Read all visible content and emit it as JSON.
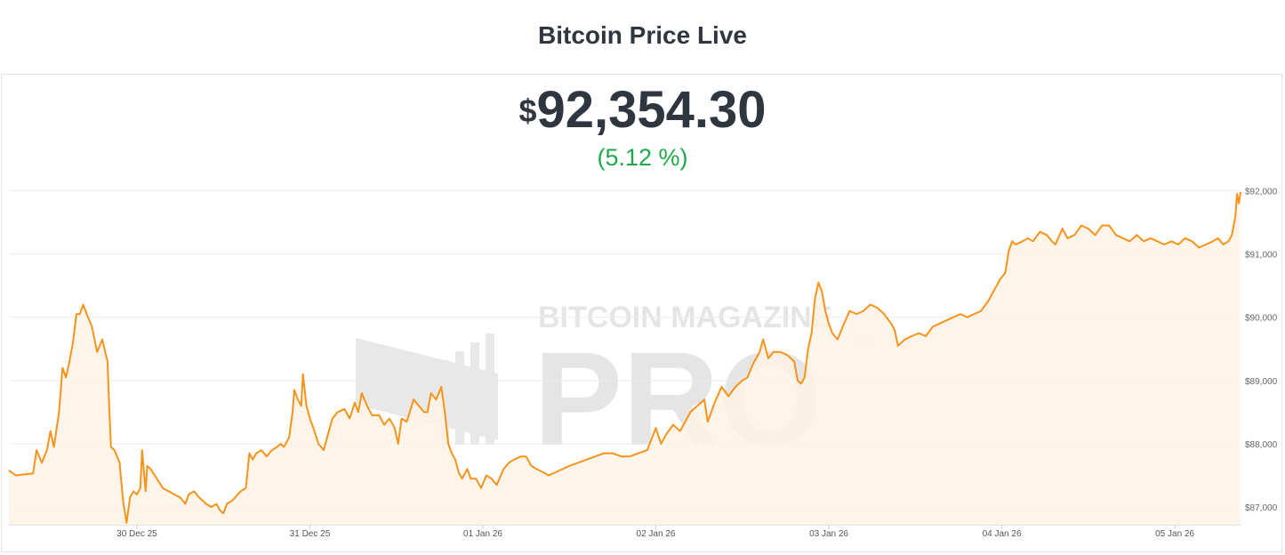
{
  "header": {
    "title": "Bitcoin Price Live"
  },
  "ticker": {
    "currency_symbol": "$",
    "price": "92,354.30",
    "change": "(5.12 %)"
  },
  "watermark": {
    "line1": "BITCOIN MAGAZINE",
    "line2": "PRO",
    "mark": "®"
  },
  "colors": {
    "line": "#f7931a",
    "fill": "#fdf3e6",
    "change_positive": "#1ea84a",
    "grid": "#ececec",
    "text": "#2f3640"
  },
  "chart_data": {
    "type": "area",
    "x_unit": "days",
    "x_tick_labels": [
      {
        "x": 1,
        "label": "30 Dec 25"
      },
      {
        "x": 2,
        "label": "31 Dec 25"
      },
      {
        "x": 3,
        "label": "01 Jan 26"
      },
      {
        "x": 4,
        "label": "02 Jan 26"
      },
      {
        "x": 5,
        "label": "03 Jan 26"
      },
      {
        "x": 6,
        "label": "04 Jan 26"
      },
      {
        "x": 7,
        "label": "05 Jan 26"
      }
    ],
    "y_ticks": [
      87000,
      88000,
      89000,
      90000,
      91000,
      92000
    ],
    "y_tick_labels": [
      "$87,000",
      "$88,000",
      "$89,000",
      "$90,000",
      "$91,000",
      "$92,000"
    ],
    "xlim": [
      0.26,
      7.38
    ],
    "ylim": [
      86720,
      92020
    ],
    "grid": true,
    "series": [
      {
        "values": [
          [
            0.26,
            87580
          ],
          [
            0.3,
            87500
          ],
          [
            0.36,
            87520
          ],
          [
            0.4,
            87530
          ],
          [
            0.42,
            87900
          ],
          [
            0.45,
            87700
          ],
          [
            0.48,
            87900
          ],
          [
            0.5,
            88200
          ],
          [
            0.52,
            87950
          ],
          [
            0.55,
            88500
          ],
          [
            0.57,
            89200
          ],
          [
            0.59,
            89050
          ],
          [
            0.61,
            89300
          ],
          [
            0.63,
            89600
          ],
          [
            0.65,
            90050
          ],
          [
            0.67,
            90050
          ],
          [
            0.69,
            90200
          ],
          [
            0.71,
            90050
          ],
          [
            0.74,
            89850
          ],
          [
            0.77,
            89450
          ],
          [
            0.8,
            89650
          ],
          [
            0.83,
            89300
          ],
          [
            0.84,
            88600
          ],
          [
            0.85,
            87950
          ],
          [
            0.87,
            87900
          ],
          [
            0.9,
            87700
          ],
          [
            0.92,
            87100
          ],
          [
            0.94,
            86750
          ],
          [
            0.96,
            87150
          ],
          [
            0.98,
            87250
          ],
          [
            1.0,
            87200
          ],
          [
            1.02,
            87300
          ],
          [
            1.03,
            87900
          ],
          [
            1.05,
            87250
          ],
          [
            1.06,
            87650
          ],
          [
            1.08,
            87600
          ],
          [
            1.15,
            87300
          ],
          [
            1.25,
            87150
          ],
          [
            1.28,
            87050
          ],
          [
            1.3,
            87200
          ],
          [
            1.33,
            87250
          ],
          [
            1.36,
            87150
          ],
          [
            1.4,
            87050
          ],
          [
            1.43,
            87000
          ],
          [
            1.46,
            87050
          ],
          [
            1.48,
            86950
          ],
          [
            1.5,
            86900
          ],
          [
            1.52,
            87050
          ],
          [
            1.55,
            87100
          ],
          [
            1.6,
            87250
          ],
          [
            1.63,
            87300
          ],
          [
            1.65,
            87850
          ],
          [
            1.67,
            87750
          ],
          [
            1.69,
            87850
          ],
          [
            1.72,
            87900
          ],
          [
            1.75,
            87800
          ],
          [
            1.78,
            87900
          ],
          [
            1.81,
            87950
          ],
          [
            1.83,
            88000
          ],
          [
            1.85,
            87950
          ],
          [
            1.88,
            88100
          ],
          [
            1.9,
            88500
          ],
          [
            1.91,
            88850
          ],
          [
            1.93,
            88700
          ],
          [
            1.95,
            88600
          ],
          [
            1.96,
            89100
          ],
          [
            1.98,
            88600
          ],
          [
            2.0,
            88400
          ],
          [
            2.02,
            88250
          ],
          [
            2.05,
            88000
          ],
          [
            2.08,
            87900
          ],
          [
            2.1,
            88100
          ],
          [
            2.13,
            88400
          ],
          [
            2.16,
            88500
          ],
          [
            2.2,
            88550
          ],
          [
            2.23,
            88400
          ],
          [
            2.26,
            88650
          ],
          [
            2.28,
            88500
          ],
          [
            2.3,
            88800
          ],
          [
            2.33,
            88600
          ],
          [
            2.36,
            88450
          ],
          [
            2.4,
            88450
          ],
          [
            2.43,
            88300
          ],
          [
            2.46,
            88400
          ],
          [
            2.49,
            88250
          ],
          [
            2.51,
            88000
          ],
          [
            2.53,
            88400
          ],
          [
            2.56,
            88350
          ],
          [
            2.6,
            88700
          ],
          [
            2.63,
            88600
          ],
          [
            2.66,
            88500
          ],
          [
            2.68,
            88500
          ],
          [
            2.7,
            88800
          ],
          [
            2.73,
            88700
          ],
          [
            2.76,
            88900
          ],
          [
            2.78,
            88500
          ],
          [
            2.8,
            88000
          ],
          [
            2.82,
            87850
          ],
          [
            2.84,
            87750
          ],
          [
            2.86,
            87550
          ],
          [
            2.88,
            87450
          ],
          [
            2.91,
            87600
          ],
          [
            2.93,
            87450
          ],
          [
            2.96,
            87450
          ],
          [
            2.99,
            87300
          ],
          [
            3.02,
            87500
          ],
          [
            3.05,
            87450
          ],
          [
            3.08,
            87350
          ],
          [
            3.12,
            87600
          ],
          [
            3.15,
            87700
          ],
          [
            3.18,
            87750
          ],
          [
            3.22,
            87800
          ],
          [
            3.25,
            87800
          ],
          [
            3.28,
            87650
          ],
          [
            3.31,
            87600
          ],
          [
            3.35,
            87550
          ],
          [
            3.38,
            87500
          ],
          [
            3.42,
            87550
          ],
          [
            3.46,
            87600
          ],
          [
            3.5,
            87650
          ],
          [
            3.55,
            87700
          ],
          [
            3.6,
            87750
          ],
          [
            3.65,
            87800
          ],
          [
            3.7,
            87850
          ],
          [
            3.75,
            87850
          ],
          [
            3.8,
            87800
          ],
          [
            3.85,
            87800
          ],
          [
            3.9,
            87850
          ],
          [
            3.95,
            87900
          ],
          [
            4.0,
            88250
          ],
          [
            4.03,
            88000
          ],
          [
            4.06,
            88150
          ],
          [
            4.1,
            88300
          ],
          [
            4.14,
            88200
          ],
          [
            4.17,
            88350
          ],
          [
            4.2,
            88500
          ],
          [
            4.24,
            88600
          ],
          [
            4.28,
            88700
          ],
          [
            4.3,
            88350
          ],
          [
            4.34,
            88650
          ],
          [
            4.38,
            88900
          ],
          [
            4.42,
            88750
          ],
          [
            4.46,
            88900
          ],
          [
            4.5,
            89000
          ],
          [
            4.53,
            89050
          ],
          [
            4.56,
            89250
          ],
          [
            4.6,
            89450
          ],
          [
            4.62,
            89650
          ],
          [
            4.65,
            89350
          ],
          [
            4.68,
            89450
          ],
          [
            4.72,
            89450
          ],
          [
            4.76,
            89400
          ],
          [
            4.8,
            89300
          ],
          [
            4.82,
            89000
          ],
          [
            4.84,
            88950
          ],
          [
            4.86,
            89050
          ],
          [
            4.88,
            89500
          ],
          [
            4.9,
            89750
          ],
          [
            4.92,
            90300
          ],
          [
            4.94,
            90550
          ],
          [
            4.96,
            90400
          ],
          [
            4.98,
            90100
          ],
          [
            5.0,
            89900
          ],
          [
            5.02,
            89750
          ],
          [
            5.05,
            89650
          ],
          [
            5.08,
            89850
          ],
          [
            5.12,
            90100
          ],
          [
            5.16,
            90050
          ],
          [
            5.2,
            90100
          ],
          [
            5.24,
            90200
          ],
          [
            5.28,
            90150
          ],
          [
            5.32,
            90050
          ],
          [
            5.36,
            89900
          ],
          [
            5.38,
            89800
          ],
          [
            5.4,
            89550
          ],
          [
            5.44,
            89650
          ],
          [
            5.48,
            89700
          ],
          [
            5.52,
            89750
          ],
          [
            5.56,
            89700
          ],
          [
            5.6,
            89850
          ],
          [
            5.64,
            89900
          ],
          [
            5.68,
            89950
          ],
          [
            5.72,
            90000
          ],
          [
            5.76,
            90050
          ],
          [
            5.8,
            90000
          ],
          [
            5.84,
            90050
          ],
          [
            5.88,
            90100
          ],
          [
            5.92,
            90250
          ],
          [
            5.96,
            90450
          ],
          [
            5.99,
            90600
          ],
          [
            6.02,
            90700
          ],
          [
            6.04,
            91050
          ],
          [
            6.06,
            91200
          ],
          [
            6.08,
            91150
          ],
          [
            6.12,
            91200
          ],
          [
            6.15,
            91250
          ],
          [
            6.18,
            91200
          ],
          [
            6.22,
            91350
          ],
          [
            6.26,
            91300
          ],
          [
            6.29,
            91200
          ],
          [
            6.31,
            91150
          ],
          [
            6.35,
            91400
          ],
          [
            6.38,
            91250
          ],
          [
            6.42,
            91300
          ],
          [
            6.46,
            91450
          ],
          [
            6.5,
            91400
          ],
          [
            6.54,
            91300
          ],
          [
            6.58,
            91450
          ],
          [
            6.62,
            91450
          ],
          [
            6.66,
            91300
          ],
          [
            6.7,
            91250
          ],
          [
            6.74,
            91200
          ],
          [
            6.78,
            91300
          ],
          [
            6.82,
            91200
          ],
          [
            6.86,
            91250
          ],
          [
            6.9,
            91200
          ],
          [
            6.94,
            91150
          ],
          [
            6.98,
            91200
          ],
          [
            7.02,
            91150
          ],
          [
            7.06,
            91250
          ],
          [
            7.1,
            91200
          ],
          [
            7.14,
            91100
          ],
          [
            7.18,
            91150
          ],
          [
            7.22,
            91200
          ],
          [
            7.25,
            91250
          ],
          [
            7.28,
            91150
          ],
          [
            7.31,
            91200
          ],
          [
            7.33,
            91300
          ],
          [
            7.35,
            91600
          ],
          [
            7.36,
            91950
          ],
          [
            7.37,
            91800
          ],
          [
            7.38,
            91980
          ]
        ]
      }
    ]
  }
}
